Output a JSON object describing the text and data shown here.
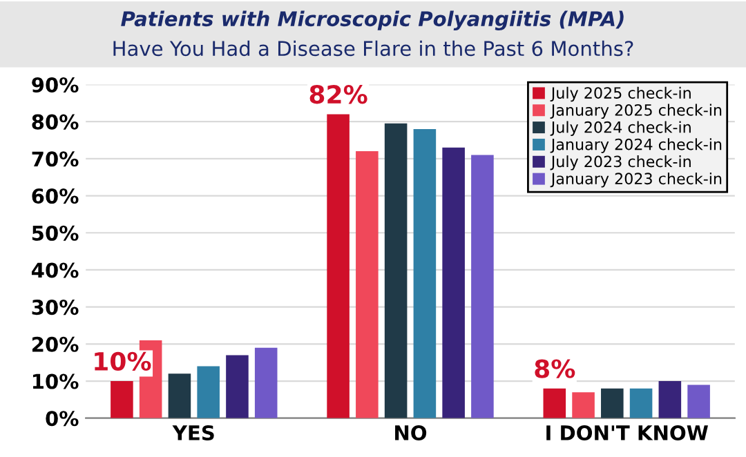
{
  "chart_data": {
    "type": "bar",
    "title": "Patients with Microscopic Polyangiitis (MPA)",
    "subtitle": "Have You Had a Disease Flare in the Past 6 Months?",
    "categories": [
      "YES",
      "NO",
      "I DON'T KNOW"
    ],
    "series": [
      {
        "name": "July 2025 check-in",
        "color": "#d0102a",
        "values": [
          10,
          82,
          8
        ],
        "value_labels": [
          "10%",
          "82%",
          "8%"
        ]
      },
      {
        "name": "January 2025 check-in",
        "color": "#f0485a",
        "values": [
          21,
          72,
          7
        ]
      },
      {
        "name": "July 2024 check-in",
        "color": "#203a48",
        "values": [
          12,
          79.5,
          8
        ]
      },
      {
        "name": "January 2024 check-in",
        "color": "#2f80a6",
        "values": [
          14,
          78,
          8
        ]
      },
      {
        "name": "July 2023 check-in",
        "color": "#38247a",
        "values": [
          17,
          73,
          10
        ]
      },
      {
        "name": "January 2023 check-in",
        "color": "#7059c8",
        "values": [
          19,
          71,
          9
        ]
      }
    ],
    "ylim": [
      0,
      90
    ],
    "yticks": [
      {
        "value": 0,
        "label": "0%"
      },
      {
        "value": 10,
        "label": "10%"
      },
      {
        "value": 20,
        "label": "20%"
      },
      {
        "value": 30,
        "label": "30%"
      },
      {
        "value": 40,
        "label": "40%"
      },
      {
        "value": 50,
        "label": "50%"
      },
      {
        "value": 60,
        "label": "60%"
      },
      {
        "value": 70,
        "label": "70%"
      },
      {
        "value": 80,
        "label": "80%"
      },
      {
        "value": 90,
        "label": "90%"
      }
    ],
    "grid": "y",
    "legend": "top right"
  }
}
